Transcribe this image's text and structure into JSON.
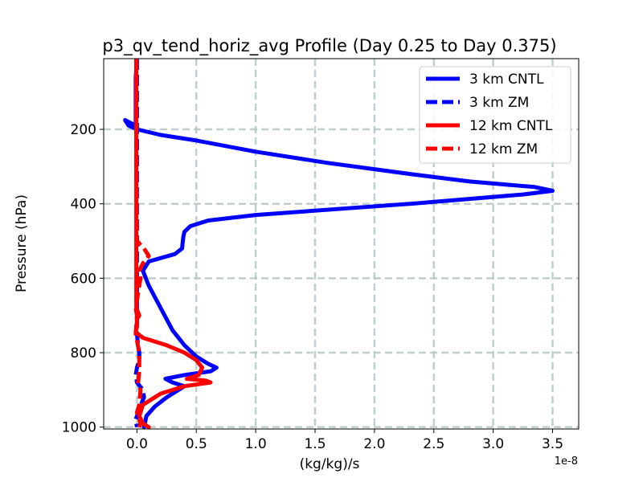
{
  "chart_data": {
    "type": "line",
    "title": "p3_qv_tend_horiz_avg Profile (Day 0.25 to Day 0.375)",
    "xlabel": "(kg/kg)/s",
    "ylabel": "Pressure (hPa)",
    "x_offset_label": "1e-8",
    "xlim": [
      -0.28,
      3.72
    ],
    "ylim": [
      1005,
      10
    ],
    "y_inverted": true,
    "xticks": [
      0.0,
      0.5,
      1.0,
      1.5,
      2.0,
      2.5,
      3.0,
      3.5
    ],
    "xtick_labels": [
      "0.0",
      "0.5",
      "1.0",
      "1.5",
      "2.0",
      "2.5",
      "3.0",
      "3.5"
    ],
    "yticks": [
      200,
      400,
      600,
      800,
      1000
    ],
    "ytick_labels": [
      "200",
      "400",
      "600",
      "800",
      "1000"
    ],
    "grid": true,
    "legend_position": "upper right",
    "series": [
      {
        "name": "3 km CNTL",
        "color": "#0000ff",
        "style": "solid",
        "x": [
          -0.005,
          -0.005,
          -0.01,
          -0.01,
          -0.01,
          -0.01,
          -0.01,
          -0.01,
          -0.01,
          -0.01,
          -0.01,
          -0.01,
          -0.01,
          -0.01,
          -0.01,
          -0.01,
          -0.01,
          -0.1,
          -0.07,
          0.0,
          0.2,
          0.5,
          1.0,
          1.6,
          2.3,
          2.8,
          3.35,
          3.5,
          3.25,
          2.3,
          1.0,
          0.6,
          0.45,
          0.4,
          0.39,
          0.38,
          0.32,
          0.1,
          0.05,
          0.1,
          0.2,
          0.3,
          0.4,
          0.5,
          0.6,
          0.67,
          0.62,
          0.4,
          0.24,
          0.3,
          0.4,
          0.25,
          0.15,
          0.08,
          0.06
        ],
        "y": [
          10,
          40,
          60,
          80,
          100,
          120,
          130,
          140,
          150,
          155,
          160,
          165,
          170,
          175,
          180,
          185,
          190,
          175,
          190,
          200,
          215,
          230,
          260,
          290,
          320,
          340,
          355,
          365,
          375,
          400,
          430,
          445,
          460,
          475,
          490,
          520,
          535,
          555,
          580,
          620,
          680,
          740,
          780,
          810,
          830,
          840,
          850,
          860,
          870,
          880,
          890,
          920,
          945,
          970,
          1000
        ]
      },
      {
        "name": "3 km ZM",
        "color": "#0000ff",
        "style": "dashed",
        "x": [
          0.0,
          0.0,
          0.0,
          0.0,
          0.0,
          0.0,
          0.0,
          0.0,
          0.0,
          0.0,
          0.0,
          0.01,
          0.02,
          0.02,
          0.0,
          -0.01,
          0.0,
          0.05,
          0.06,
          0.02,
          -0.01,
          0.0
        ],
        "y": [
          10,
          100,
          200,
          300,
          400,
          450,
          500,
          550,
          600,
          700,
          750,
          780,
          800,
          820,
          840,
          860,
          880,
          900,
          920,
          950,
          980,
          1000
        ]
      },
      {
        "name": "12 km CNTL",
        "color": "#ff0000",
        "style": "solid",
        "x": [
          -0.005,
          -0.005,
          -0.005,
          -0.005,
          -0.005,
          -0.005,
          -0.005,
          -0.005,
          -0.005,
          -0.005,
          -0.005,
          0.02,
          0.0,
          0.0,
          -0.01,
          0.05,
          0.25,
          0.4,
          0.5,
          0.55,
          0.52,
          0.42,
          0.58,
          0.62,
          0.4,
          0.2,
          0.05,
          0.02,
          0.05,
          0.1
        ],
        "y": [
          10,
          100,
          200,
          300,
          400,
          500,
          550,
          580,
          600,
          650,
          680,
          700,
          710,
          730,
          745,
          760,
          780,
          800,
          820,
          840,
          860,
          870,
          875,
          880,
          890,
          910,
          940,
          970,
          990,
          1000
        ]
      },
      {
        "name": "12 km ZM",
        "color": "#ff0000",
        "style": "dashed",
        "x": [
          -0.005,
          -0.005,
          -0.005,
          0.0,
          0.06,
          0.1,
          0.05,
          0.02,
          0.03,
          0.01,
          -0.01,
          0.0,
          -0.01,
          0.02,
          0.02,
          0.01,
          0.03,
          0.02,
          0.0,
          0.03,
          0.02
        ],
        "y": [
          10,
          100,
          300,
          500,
          520,
          540,
          560,
          580,
          600,
          640,
          680,
          700,
          750,
          800,
          850,
          880,
          900,
          940,
          960,
          990,
          1000
        ]
      }
    ]
  }
}
